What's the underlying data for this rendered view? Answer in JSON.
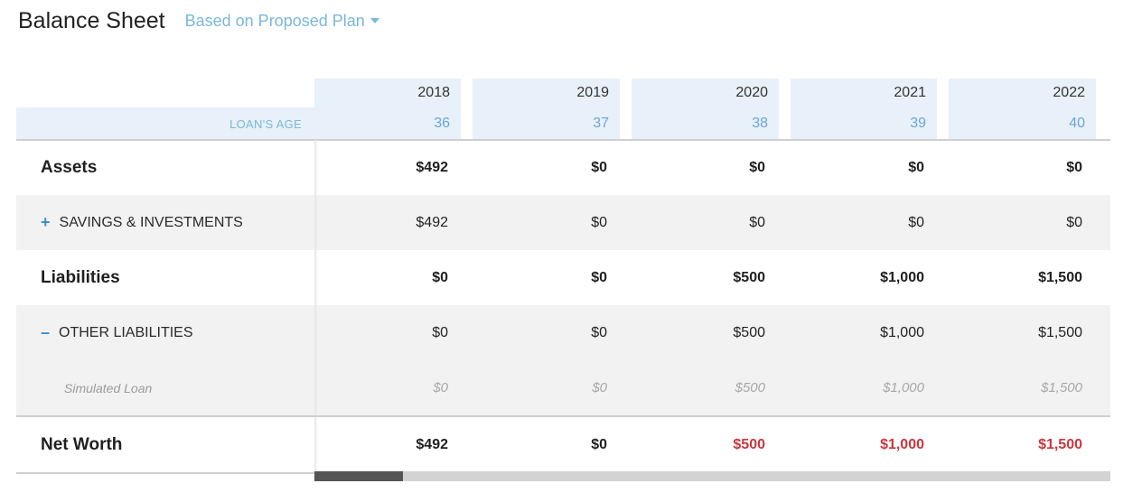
{
  "header": {
    "title": "Balance Sheet",
    "plan_selector": "Based on Proposed Plan",
    "plan_caret_icon": "caret-down-icon"
  },
  "columns": {
    "years": [
      "2018",
      "2019",
      "2020",
      "2021",
      "2022"
    ],
    "loan_age_label": "LOAN'S AGE",
    "loan_ages": [
      "36",
      "37",
      "38",
      "39",
      "40"
    ]
  },
  "rows": {
    "assets": {
      "label": "Assets",
      "values": [
        "$492",
        "$0",
        "$0",
        "$0",
        "$0"
      ]
    },
    "savings": {
      "sign": "+",
      "label": "SAVINGS & INVESTMENTS",
      "values": [
        "$492",
        "$0",
        "$0",
        "$0",
        "$0"
      ]
    },
    "liabilities": {
      "label": "Liabilities",
      "values": [
        "$0",
        "$0",
        "$500",
        "$1,000",
        "$1,500"
      ]
    },
    "other_liabilities": {
      "sign": "–",
      "label": "OTHER LIABILITIES",
      "values": [
        "$0",
        "$0",
        "$500",
        "$1,000",
        "$1,500"
      ]
    },
    "simulated_loan": {
      "label": "Simulated Loan",
      "values": [
        "$0",
        "$0",
        "$500",
        "$1,000",
        "$1,500"
      ]
    },
    "net_worth": {
      "label": "Net Worth",
      "values": [
        "$492",
        "$0",
        "$500",
        "$1,000",
        "$1,500"
      ]
    }
  },
  "colors": {
    "accent": "#7ab8d9",
    "negative": "#c9373e",
    "header_bg": "#e8f0f9"
  }
}
